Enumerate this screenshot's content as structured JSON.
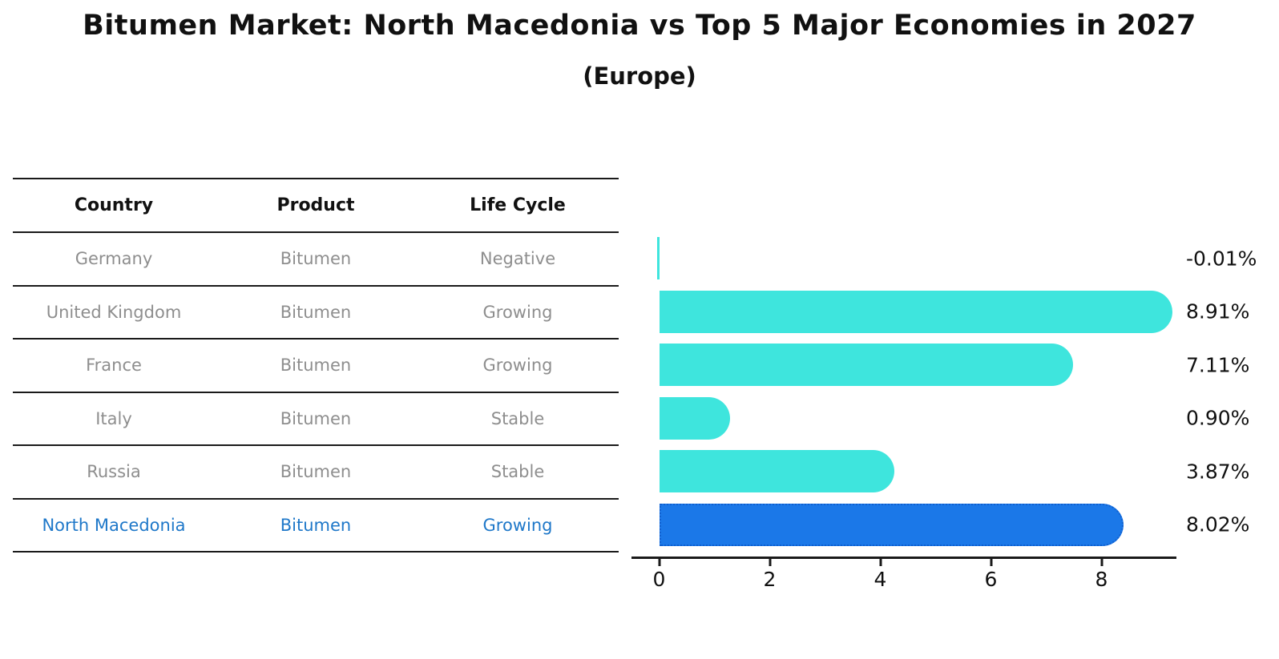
{
  "title": "Bitumen Market: North Macedonia vs Top 5 Major Economies in 2027",
  "subtitle": "(Europe)",
  "colors": {
    "bar_default": "#3ee5dd",
    "bar_highlight_fill": "#1b78e8",
    "bar_highlight_border": "#1060d0",
    "highlight_text": "#1f78c9",
    "muted_text": "#8e8e8e",
    "axis": "#1a1a1a"
  },
  "table": {
    "headers": [
      "Country",
      "Product",
      "Life Cycle"
    ],
    "rows": [
      {
        "country": "Germany",
        "product": "Bitumen",
        "life_cycle": "Negative",
        "highlight": false
      },
      {
        "country": "United Kingdom",
        "product": "Bitumen",
        "life_cycle": "Growing",
        "highlight": false
      },
      {
        "country": "France",
        "product": "Bitumen",
        "life_cycle": "Growing",
        "highlight": false
      },
      {
        "country": "Italy",
        "product": "Bitumen",
        "life_cycle": "Stable",
        "highlight": false
      },
      {
        "country": "Russia",
        "product": "Bitumen",
        "life_cycle": "Stable",
        "highlight": true
      }
    ],
    "highlight_row": {
      "country": "North Macedonia",
      "product": "Bitumen",
      "life_cycle": "Growing"
    }
  },
  "chart_data": {
    "type": "bar",
    "orientation": "horizontal",
    "title": "Bitumen Market: North Macedonia vs Top 5 Major Economies in 2027 (Europe)",
    "categories": [
      "Germany",
      "United Kingdom",
      "France",
      "Italy",
      "Russia",
      "North Macedonia"
    ],
    "values": [
      -0.01,
      8.91,
      7.11,
      0.9,
      3.87,
      8.02
    ],
    "value_labels": [
      "-0.01%",
      "8.91%",
      "7.11%",
      "0.90%",
      "3.87%",
      "8.02%"
    ],
    "unit": "%",
    "highlight_index": 5,
    "xticks": [
      0,
      2,
      4,
      6,
      8
    ],
    "xlim": [
      -0.5,
      9.35
    ],
    "grid": false,
    "legend": false
  }
}
